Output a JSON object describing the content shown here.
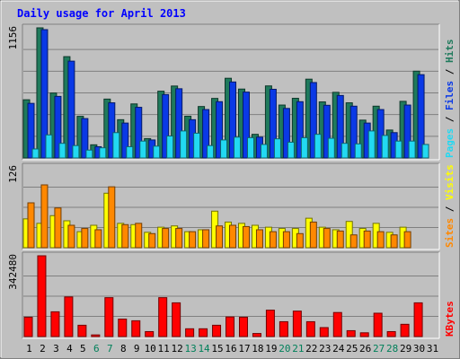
{
  "chart_data": {
    "type": "bar",
    "title": "Daily usage for April 2013",
    "categories": [
      "1",
      "2",
      "3",
      "4",
      "5",
      "6",
      "7",
      "8",
      "9",
      "10",
      "11",
      "12",
      "13",
      "14",
      "15",
      "16",
      "17",
      "18",
      "19",
      "20",
      "21",
      "22",
      "23",
      "24",
      "25",
      "26",
      "27",
      "28",
      "29",
      "30",
      "31"
    ],
    "weekend_days": [
      "6",
      "7",
      "13",
      "14",
      "20",
      "21",
      "27",
      "28"
    ],
    "panels": [
      {
        "id": "traffic",
        "ymax": 1156,
        "ylabel_series": [
          "Pages",
          "Files",
          "Hits"
        ],
        "series": [
          {
            "name": "Hits",
            "color": "#1f7a5c",
            "values": [
              517,
              1156,
              577,
              900,
              370,
              117,
              523,
              340,
              480,
              172,
              593,
              639,
              371,
              457,
              529,
              708,
              612,
              210,
              640,
              470,
              530,
              700,
              498,
              583,
              490,
              336,
              460,
              248,
              503,
              771,
              0
            ]
          },
          {
            "name": "Files",
            "color": "#0a39e6",
            "values": [
              485,
              1140,
              547,
              860,
              350,
              100,
              490,
              310,
              450,
              160,
              563,
              615,
              340,
              430,
              500,
              675,
              585,
              185,
              610,
              440,
              500,
              670,
              468,
              555,
              460,
              310,
              430,
              225,
              470,
              740,
              0
            ]
          },
          {
            "name": "Pages",
            "color": "#22d9f2",
            "values": [
              80,
              205,
              130,
              110,
              70,
              90,
              225,
              100,
              150,
              105,
              195,
              240,
              220,
              110,
              160,
              185,
              180,
              120,
              170,
              140,
              180,
              210,
              175,
              130,
              125,
              240,
              200,
              150,
              150,
              120,
              0
            ]
          }
        ]
      },
      {
        "id": "visitors",
        "ymax": 126,
        "ylabel_series": [
          "Sites",
          "Visits"
        ],
        "series": [
          {
            "name": "Visits",
            "color": "#ffff00",
            "values": [
              45,
              38,
              50,
              42,
              25,
              35,
              85,
              38,
              36,
              24,
              32,
              34,
              25,
              28,
              57,
              40,
              38,
              35,
              32,
              30,
              30,
              46,
              32,
              28,
              41,
              30,
              38,
              24,
              32,
              0,
              0
            ]
          },
          {
            "name": "Sites",
            "color": "#ff8800",
            "values": [
              70,
              98,
              62,
              35,
              30,
              28,
              95,
              36,
              38,
              22,
              30,
              30,
              25,
              28,
              34,
              35,
              33,
              28,
              25,
              25,
              22,
              40,
              30,
              26,
              20,
              26,
              25,
              20,
              25,
              0,
              0
            ]
          }
        ]
      },
      {
        "id": "kbytes",
        "ymax": 342480,
        "ylabel_series": [
          "KBytes"
        ],
        "series": [
          {
            "name": "KBytes",
            "color": "#ff0000",
            "values": [
              82000,
              342480,
              105000,
              168000,
              48000,
              7000,
              165000,
              74000,
              67000,
              21000,
              165000,
              143000,
              33000,
              33000,
              48000,
              83000,
              82000,
              13000,
              112000,
              63000,
              108000,
              63000,
              38000,
              102000,
              25000,
              16000,
              99000,
              21000,
              52000,
              143000,
              0
            ]
          }
        ]
      }
    ],
    "colors": {
      "background": "#c0c0c0",
      "plot": "#c0c0c0",
      "title": "#0000ff",
      "weekday_label": "#000000",
      "weekend_label": "#00805a",
      "separator": "#000000"
    }
  }
}
